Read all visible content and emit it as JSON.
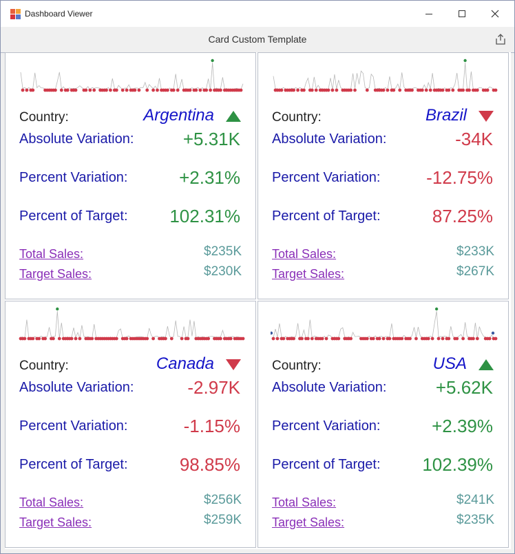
{
  "window": {
    "title": "Dashboard Viewer"
  },
  "header": {
    "title": "Card Custom Template"
  },
  "cards": [
    {
      "country_label": "Country:",
      "country": "Argentina",
      "trend": "up",
      "abs_label": "Absolute Variation:",
      "abs_value": "+5.31K",
      "pct_label": "Percent Variation:",
      "pct_value": "+2.31%",
      "target_label": "Percent of Target:",
      "target_value": "102.31%",
      "total_label": "Total Sales:",
      "total_value": "$235K",
      "targetsales_label": "Target Sales:",
      "targetsales_value": "$230K"
    },
    {
      "country_label": "Country:",
      "country": "Brazil",
      "trend": "down",
      "abs_label": "Absolute Variation:",
      "abs_value": "-34K",
      "pct_label": "Percent Variation:",
      "pct_value": "-12.75%",
      "target_label": "Percent of Target:",
      "target_value": "87.25%",
      "total_label": "Total Sales:",
      "total_value": "$233K",
      "targetsales_label": "Target Sales:",
      "targetsales_value": "$267K"
    },
    {
      "country_label": "Country:",
      "country": "Canada",
      "trend": "down",
      "abs_label": "Absolute Variation:",
      "abs_value": "-2.97K",
      "pct_label": "Percent Variation:",
      "pct_value": "-1.15%",
      "target_label": "Percent of Target:",
      "target_value": "98.85%",
      "total_label": "Total Sales:",
      "total_value": "$256K",
      "targetsales_label": "Target Sales:",
      "targetsales_value": "$259K"
    },
    {
      "country_label": "Country:",
      "country": "USA",
      "trend": "up",
      "abs_label": "Absolute Variation:",
      "abs_value": "+5.62K",
      "pct_label": "Percent Variation:",
      "pct_value": "+2.39%",
      "target_label": "Percent of Target:",
      "target_value": "102.39%",
      "total_label": "Total Sales:",
      "total_value": "$241K",
      "targetsales_label": "Target Sales:",
      "targetsales_value": "$235K"
    }
  ],
  "colors": {
    "positive": "#2e9244",
    "negative": "#d03a4a",
    "sparkline_line": "#b8b8b8",
    "sparkline_dot": "#d03a4a",
    "sparkline_max": "#2e9244",
    "sparkline_min": "#3a5aa0"
  }
}
